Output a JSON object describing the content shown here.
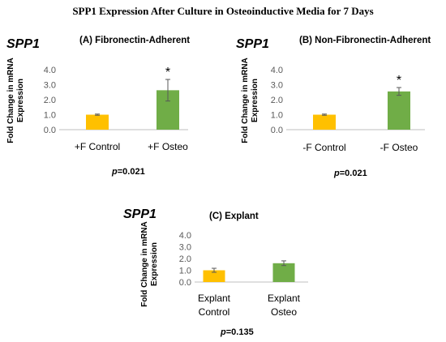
{
  "figure_title": "SPP1 Expression After Culture in Osteoinductive Media for 7 Days",
  "colors": {
    "control": "#FFC000",
    "osteo": "#70AD47",
    "axis": "#BFBFBF",
    "tick_text": "#595959"
  },
  "chart_data": [
    {
      "type": "bar",
      "gene": "SPP1",
      "title": "(A) Fibronectin-Adherent",
      "ylabel": "Fold Change in mRNA Expression",
      "xlabel": "",
      "ylim": [
        0,
        4
      ],
      "yticks": [
        "0.0",
        "1.0",
        "2.0",
        "3.0",
        "4.0"
      ],
      "categories": [
        "+F Control",
        "+F Osteo"
      ],
      "values": [
        1.0,
        2.63
      ],
      "errors": [
        0.04,
        0.72
      ],
      "significance": [
        "",
        "*"
      ],
      "p_prefix": "p",
      "p_value": "=0.021"
    },
    {
      "type": "bar",
      "gene": "SPP1",
      "title": "(B) Non-Fibronectin-Adherent",
      "ylabel": "Fold Change in mRNA Expression",
      "xlabel": "",
      "ylim": [
        0,
        4
      ],
      "yticks": [
        "0.0",
        "1.0",
        "2.0",
        "3.0",
        "4.0"
      ],
      "categories": [
        "-F Control",
        "-F Osteo"
      ],
      "values": [
        1.0,
        2.55
      ],
      "errors": [
        0.04,
        0.26
      ],
      "significance": [
        "",
        "*"
      ],
      "p_prefix": "p",
      "p_value": "=0.021"
    },
    {
      "type": "bar",
      "gene": "SPP1",
      "title": "(C) Explant",
      "ylabel": "Fold Change in mRNA Expression",
      "xlabel": "",
      "ylim": [
        0,
        4
      ],
      "yticks": [
        "0.0",
        "1.0",
        "2.0",
        "3.0",
        "4.0"
      ],
      "categories": [
        "Explant Control",
        "Explant Osteo"
      ],
      "category_lines": [
        [
          "Explant",
          "Control"
        ],
        [
          "Explant",
          "Osteo"
        ]
      ],
      "values": [
        1.0,
        1.6
      ],
      "errors": [
        0.17,
        0.2
      ],
      "significance": [
        "",
        ""
      ],
      "p_prefix": "p",
      "p_value": "=0.135"
    }
  ]
}
